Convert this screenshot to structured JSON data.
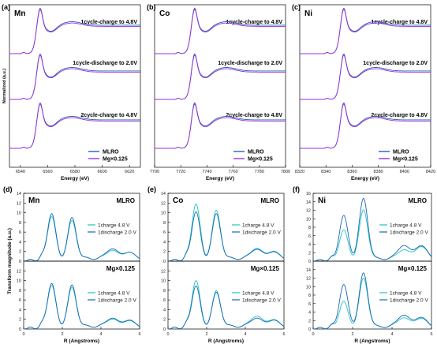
{
  "chart_data": [
    {
      "panel": "(a)",
      "type": "line",
      "element": "Mn",
      "xlabel": "Energy (eV)",
      "ylabel": "Normalized (a.u.)",
      "xticks": [
        6540,
        6560,
        6580,
        6600,
        6620
      ],
      "xlim": [
        6532,
        6628
      ],
      "edge": 6551,
      "annotations": [
        "1cycle-charge to 4.8V",
        "1cycle-discharge to 2.0V",
        "2cycle-charge to 4.8V"
      ],
      "series": [
        {
          "name": "MLRO",
          "color": "#2a5fb0"
        },
        {
          "name": "Mg×0.125",
          "color": "#9a2fe0"
        }
      ]
    },
    {
      "panel": "(b)",
      "type": "line",
      "element": "Co",
      "xlabel": "Energy (eV)",
      "ylabel": "",
      "xticks": [
        7700,
        7720,
        7740,
        7760,
        7780,
        7800
      ],
      "xlim": [
        7700,
        7800
      ],
      "edge": 7727,
      "annotations": [
        "1cycle-charge to 4.8V",
        "1cycle-discharge to 2.0V",
        "2cycle-charge to 4.8V"
      ],
      "series": [
        {
          "name": "MLRO",
          "color": "#2a5fb0"
        },
        {
          "name": "Mg×0.125",
          "color": "#9a2fe0"
        }
      ]
    },
    {
      "panel": "(c)",
      "type": "line",
      "element": "Ni",
      "xlabel": "Energy (eV)",
      "ylabel": "",
      "xticks": [
        8320,
        8340,
        8360,
        8380,
        8400,
        8420
      ],
      "xlim": [
        8320,
        8420
      ],
      "edge": 8350,
      "annotations": [
        "1cycle-charge to 4.8V",
        "1cycle-discharge to 2.0V",
        "2cycle-charge to 4.8V"
      ],
      "series": [
        {
          "name": "MLRO",
          "color": "#2a5fb0"
        },
        {
          "name": "Mg×0.125",
          "color": "#9a2fe0"
        }
      ]
    },
    {
      "panel": "(d)",
      "type": "line",
      "element": "Mn",
      "xlabel": "R (Angstroms)",
      "ylabel": "Transform magnitude (a.u.)",
      "xticks": [
        0,
        2,
        4,
        6
      ],
      "ylim": [
        0,
        14
      ],
      "top_yticks": [
        0,
        2,
        4,
        6,
        8,
        10,
        12,
        14
      ],
      "bottom_yticks": [
        0,
        2,
        4,
        6,
        8,
        10,
        12
      ],
      "subplots": [
        {
          "label": "MLRO",
          "series": [
            {
              "name": "1charge 4.8 V",
              "color": "#22c4c4",
              "peaks": [
                [
                  1.45,
                  9.2
                ],
                [
                  2.5,
                  8.4
                ],
                [
                  4.6,
                  2.2
                ],
                [
                  5.5,
                  1.8
                ]
              ]
            },
            {
              "name": "1discharge 2.0 V",
              "color": "#1a66b8",
              "peaks": [
                [
                  1.45,
                  9.8
                ],
                [
                  2.5,
                  9.0
                ],
                [
                  4.6,
                  2.5
                ],
                [
                  5.5,
                  1.8
                ]
              ]
            }
          ]
        },
        {
          "label": "Mg×0.125",
          "series": [
            {
              "name": "1charge 4.8 V",
              "color": "#22c4c4",
              "peaks": [
                [
                  1.45,
                  9.0
                ],
                [
                  2.5,
                  8.6
                ],
                [
                  4.6,
                  2.0
                ],
                [
                  5.5,
                  1.7
                ]
              ]
            },
            {
              "name": "1discharge 2.0 V",
              "color": "#1a66b8",
              "peaks": [
                [
                  1.45,
                  9.4
                ],
                [
                  2.5,
                  9.1
                ],
                [
                  4.6,
                  2.2
                ],
                [
                  5.5,
                  1.8
                ]
              ]
            }
          ]
        }
      ]
    },
    {
      "panel": "(e)",
      "type": "line",
      "element": "Co",
      "xlabel": "R (Angstroms)",
      "ylabel": "",
      "xticks": [
        0,
        2,
        4,
        6
      ],
      "ylim": [
        0,
        14
      ],
      "top_yticks": [
        0,
        2,
        4,
        6,
        8,
        10,
        12,
        14
      ],
      "bottom_yticks": [
        0,
        2,
        4,
        6,
        8,
        10,
        12
      ],
      "subplots": [
        {
          "label": "MLRO",
          "series": [
            {
              "name": "1charge 4.8 V",
              "color": "#22c4c4",
              "peaks": [
                [
                  1.45,
                  11.8
                ],
                [
                  2.5,
                  10.5
                ],
                [
                  4.6,
                  2.6
                ],
                [
                  5.5,
                  2.0
                ]
              ]
            },
            {
              "name": "1discharge 2.0 V",
              "color": "#1a66b8",
              "peaks": [
                [
                  1.45,
                  10.2
                ],
                [
                  2.5,
                  9.8
                ],
                [
                  4.6,
                  2.4
                ],
                [
                  5.5,
                  1.9
                ]
              ]
            }
          ]
        },
        {
          "label": "Mg×0.125",
          "series": [
            {
              "name": "1charge 4.8 V",
              "color": "#22c4c4",
              "peaks": [
                [
                  1.45,
                  10.0
                ],
                [
                  2.5,
                  7.9
                ],
                [
                  4.6,
                  2.6
                ],
                [
                  5.5,
                  1.9
                ]
              ]
            },
            {
              "name": "1discharge 2.0 V",
              "color": "#1a66b8",
              "peaks": [
                [
                  1.45,
                  8.9
                ],
                [
                  2.5,
                  7.6
                ],
                [
                  4.6,
                  2.2
                ],
                [
                  5.5,
                  1.8
                ]
              ]
            }
          ]
        }
      ]
    },
    {
      "panel": "(f)",
      "type": "line",
      "element": "Ni",
      "xlabel": "R (Angstroms)",
      "ylabel": "",
      "xticks": [
        0,
        2,
        4,
        6
      ],
      "ylim": [
        0,
        16
      ],
      "top_yticks": [
        0,
        2,
        4,
        6,
        8,
        10,
        12,
        14,
        16
      ],
      "bottom_yticks": [
        0,
        2,
        4,
        6,
        8,
        10,
        12,
        14
      ],
      "subplots": [
        {
          "label": "MLRO",
          "series": [
            {
              "name": "1charge 4.8 V",
              "color": "#22c4c4",
              "peaks": [
                [
                  1.55,
                  7.4
                ],
                [
                  2.55,
                  12.1
                ],
                [
                  4.6,
                  2.6
                ],
                [
                  5.5,
                  3.4
                ]
              ]
            },
            {
              "name": "1discharge 2.0 V",
              "color": "#1a66b8",
              "peaks": [
                [
                  1.55,
                  10.8
                ],
                [
                  2.55,
                  14.8
                ],
                [
                  4.6,
                  3.6
                ],
                [
                  5.5,
                  3.6
                ]
              ]
            }
          ]
        },
        {
          "label": "Mg×0.125",
          "series": [
            {
              "name": "1charge 4.8 V",
              "color": "#22c4c4",
              "peaks": [
                [
                  1.55,
                  6.6
                ],
                [
                  2.55,
                  12.0
                ],
                [
                  4.6,
                  2.6
                ],
                [
                  5.5,
                  2.5
                ]
              ]
            },
            {
              "name": "1discharge 2.0 V",
              "color": "#1a66b8",
              "peaks": [
                [
                  1.55,
                  10.5
                ],
                [
                  2.55,
                  13.2
                ],
                [
                  4.6,
                  3.2
                ],
                [
                  5.5,
                  2.7
                ]
              ]
            }
          ]
        }
      ]
    }
  ]
}
